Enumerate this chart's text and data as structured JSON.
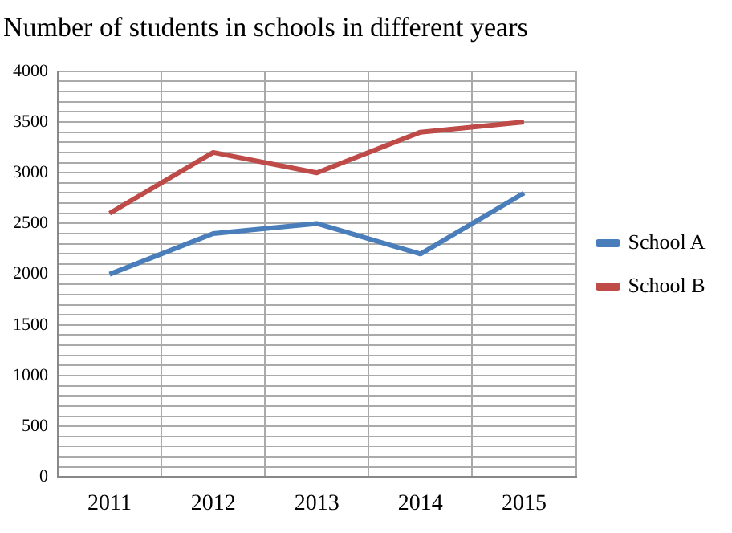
{
  "chart_data": {
    "type": "line",
    "title": "Number of students in schools in different years",
    "categories": [
      "2011",
      "2012",
      "2013",
      "2014",
      "2015"
    ],
    "series": [
      {
        "name": "School A",
        "color": "#4a7ebb",
        "values": [
          2000,
          2400,
          2500,
          2200,
          2800
        ]
      },
      {
        "name": "School B",
        "color": "#be4b48",
        "values": [
          2600,
          3200,
          3000,
          3400,
          3500
        ]
      }
    ],
    "ylim": [
      0,
      4000
    ],
    "yticks": [
      0,
      {
        "value": 100,
        "label": null
      },
      {
        "value": 200,
        "label": null
      },
      {
        "value": 300,
        "label": null
      },
      {
        "value": 400,
        "label": null
      },
      500,
      {
        "value": 600,
        "label": null
      },
      {
        "value": 700,
        "label": null
      },
      {
        "value": 800,
        "label": null
      },
      {
        "value": 900,
        "label": null
      },
      1000,
      {
        "value": 1100,
        "label": null
      },
      {
        "value": 1200,
        "label": null
      },
      {
        "value": 1300,
        "label": null
      },
      {
        "value": 1400,
        "label": null
      },
      1500,
      {
        "value": 1600,
        "label": null
      },
      {
        "value": 1700,
        "label": null
      },
      {
        "value": 1800,
        "label": null
      },
      {
        "value": 1900,
        "label": null
      },
      2000,
      {
        "value": 2100,
        "label": null
      },
      {
        "value": 2200,
        "label": null
      },
      {
        "value": 2300,
        "label": null
      },
      {
        "value": 2400,
        "label": null
      },
      2500,
      {
        "value": 2600,
        "label": null
      },
      {
        "value": 2700,
        "label": null
      },
      {
        "value": 2800,
        "label": null
      },
      {
        "value": 2900,
        "label": null
      },
      3000,
      {
        "value": 3100,
        "label": null
      },
      {
        "value": 3200,
        "label": null
      },
      {
        "value": 3300,
        "label": null
      },
      {
        "value": 3400,
        "label": null
      },
      3500,
      {
        "value": 3600,
        "label": null
      },
      {
        "value": 3700,
        "label": null
      },
      {
        "value": 3800,
        "label": null
      },
      {
        "value": 3900,
        "label": null
      },
      4000
    ],
    "grid": true,
    "legend": "right",
    "marker": "none",
    "line_style": "solid"
  }
}
